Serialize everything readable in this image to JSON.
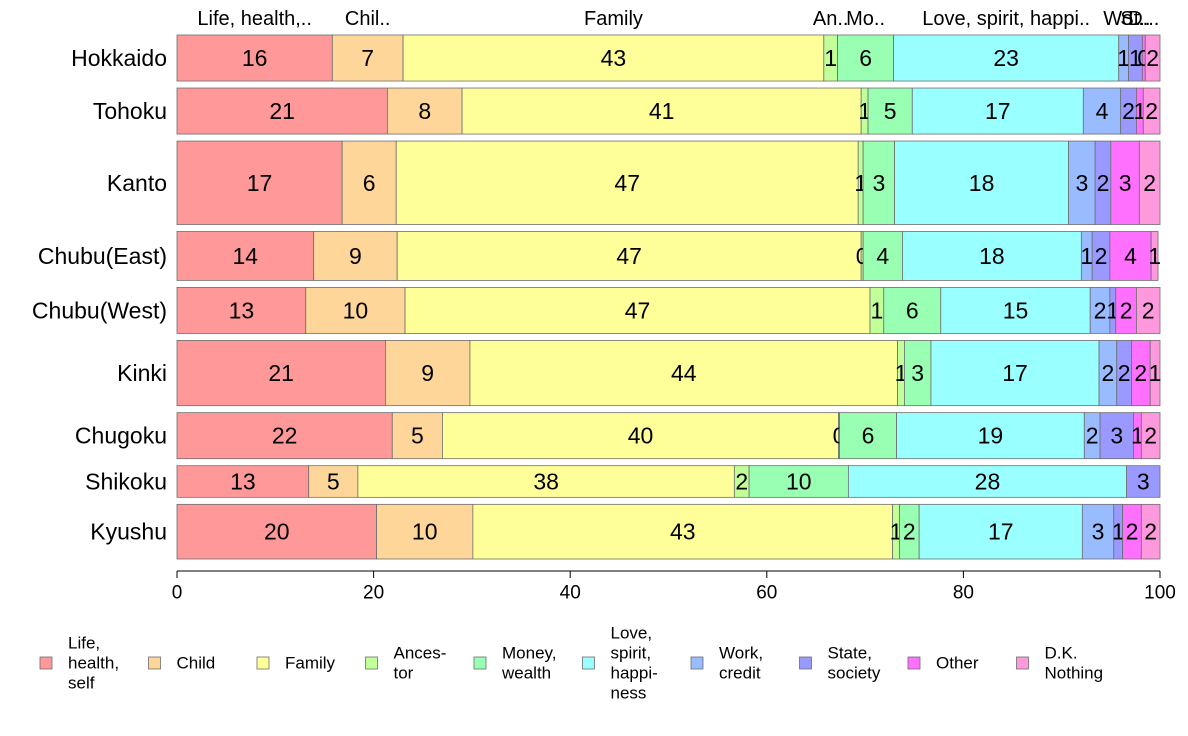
{
  "chart_data": {
    "type": "bar",
    "orientation": "horizontal",
    "stacked": true,
    "normalized": true,
    "title": "",
    "xlabel": "",
    "ylabel": "",
    "xlim": [
      0,
      100
    ],
    "x_ticks": [
      0,
      20,
      40,
      60,
      80,
      100
    ],
    "grid": false,
    "legend_position": "bottom",
    "categories": [
      "Hokkaido",
      "Tohoku",
      "Kanto",
      "Chubu(East)",
      "Chubu(West)",
      "Kinki",
      "Chugoku",
      "Shikoku",
      "Kyushu"
    ],
    "row_weights": [
      48,
      48,
      87,
      51,
      48,
      68,
      48,
      33,
      57
    ],
    "top_labels": [
      "Life, health,..",
      "Chil..",
      "Family",
      "An..",
      "Mo..",
      "Love, spirit, happi..",
      "Wo..",
      "St..",
      "D..."
    ],
    "series": [
      {
        "name": "Life, health, self",
        "legend_lines": [
          "Life,",
          "health,",
          "self"
        ],
        "color": "#FF9999",
        "values": [
          15.8,
          21.4,
          16.8,
          13.9,
          13.1,
          21.2,
          21.9,
          13.4,
          20.3
        ]
      },
      {
        "name": "Child",
        "legend_lines": [
          "Child"
        ],
        "color": "#FFD699",
        "values": [
          7.2,
          7.6,
          5.5,
          8.5,
          10.1,
          8.6,
          5.1,
          5.0,
          9.8
        ]
      },
      {
        "name": "Family",
        "legend_lines": [
          "Family"
        ],
        "color": "#FFFF99",
        "values": [
          42.8,
          40.6,
          47.0,
          47.2,
          47.3,
          43.5,
          40.3,
          38.3,
          42.7
        ]
      },
      {
        "name": "Ancestor",
        "legend_lines": [
          "Ances-",
          "tor"
        ],
        "color": "#C2FF99",
        "values": [
          1.4,
          0.7,
          0.5,
          0.2,
          1.4,
          0.7,
          0.1,
          1.5,
          0.7
        ]
      },
      {
        "name": "Money, wealth",
        "legend_lines": [
          "Money,",
          "wealth"
        ],
        "color": "#99FFB3",
        "values": [
          5.7,
          4.5,
          3.2,
          4.0,
          5.8,
          2.7,
          5.8,
          10.1,
          2.0
        ]
      },
      {
        "name": "Love, spirit, happiness",
        "legend_lines": [
          "Love,",
          "spirit,",
          "happi-",
          "ness"
        ],
        "color": "#99FFFF",
        "values": [
          22.9,
          17.4,
          17.7,
          18.2,
          15.2,
          17.1,
          19.1,
          28.3,
          16.6
        ]
      },
      {
        "name": "Work, credit",
        "legend_lines": [
          "Work,",
          "credit"
        ],
        "color": "#99BBFF",
        "values": [
          1.0,
          3.8,
          2.7,
          1.1,
          2.0,
          1.8,
          1.6,
          0.0,
          3.2
        ]
      },
      {
        "name": "State, society",
        "legend_lines": [
          "State,",
          "society"
        ],
        "color": "#9999FF",
        "values": [
          1.4,
          1.6,
          1.6,
          1.8,
          0.6,
          1.5,
          3.4,
          3.4,
          0.9
        ]
      },
      {
        "name": "Other",
        "legend_lines": [
          "Other"
        ],
        "color": "#FF70FF",
        "values": [
          0.3,
          0.7,
          2.9,
          4.2,
          2.1,
          1.9,
          0.8,
          0.0,
          1.9
        ]
      },
      {
        "name": "D.K. Nothing",
        "legend_lines": [
          "D.K.",
          "Nothing"
        ],
        "color": "#FF99DD",
        "values": [
          1.5,
          1.7,
          2.1,
          0.7,
          2.4,
          1.0,
          1.9,
          0.0,
          1.9
        ]
      }
    ]
  }
}
